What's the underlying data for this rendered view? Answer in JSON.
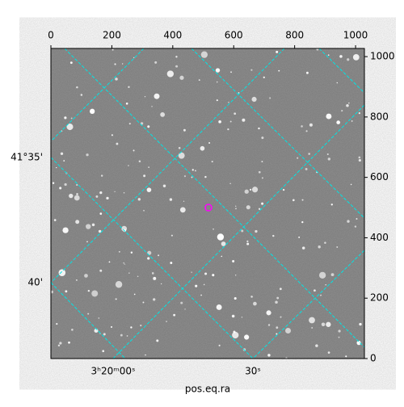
{
  "chart_data": {
    "type": "image",
    "xlabel": "pos.eq.ra",
    "xlim": [
      0,
      1029
    ],
    "xticks": [
      0,
      200,
      400,
      600,
      800,
      1000
    ],
    "ylim": [
      0,
      1027
    ],
    "yticks": [
      0,
      200,
      400,
      600,
      800,
      1000
    ],
    "wcs_dec_labels": [
      "41°35'",
      "40'"
    ],
    "wcs_ra_labels": [
      "3ʰ20ᵐ00ˢ",
      "30ˢ"
    ],
    "marker": {
      "x": 517,
      "y": 500,
      "color": "#ff00ff"
    }
  }
}
